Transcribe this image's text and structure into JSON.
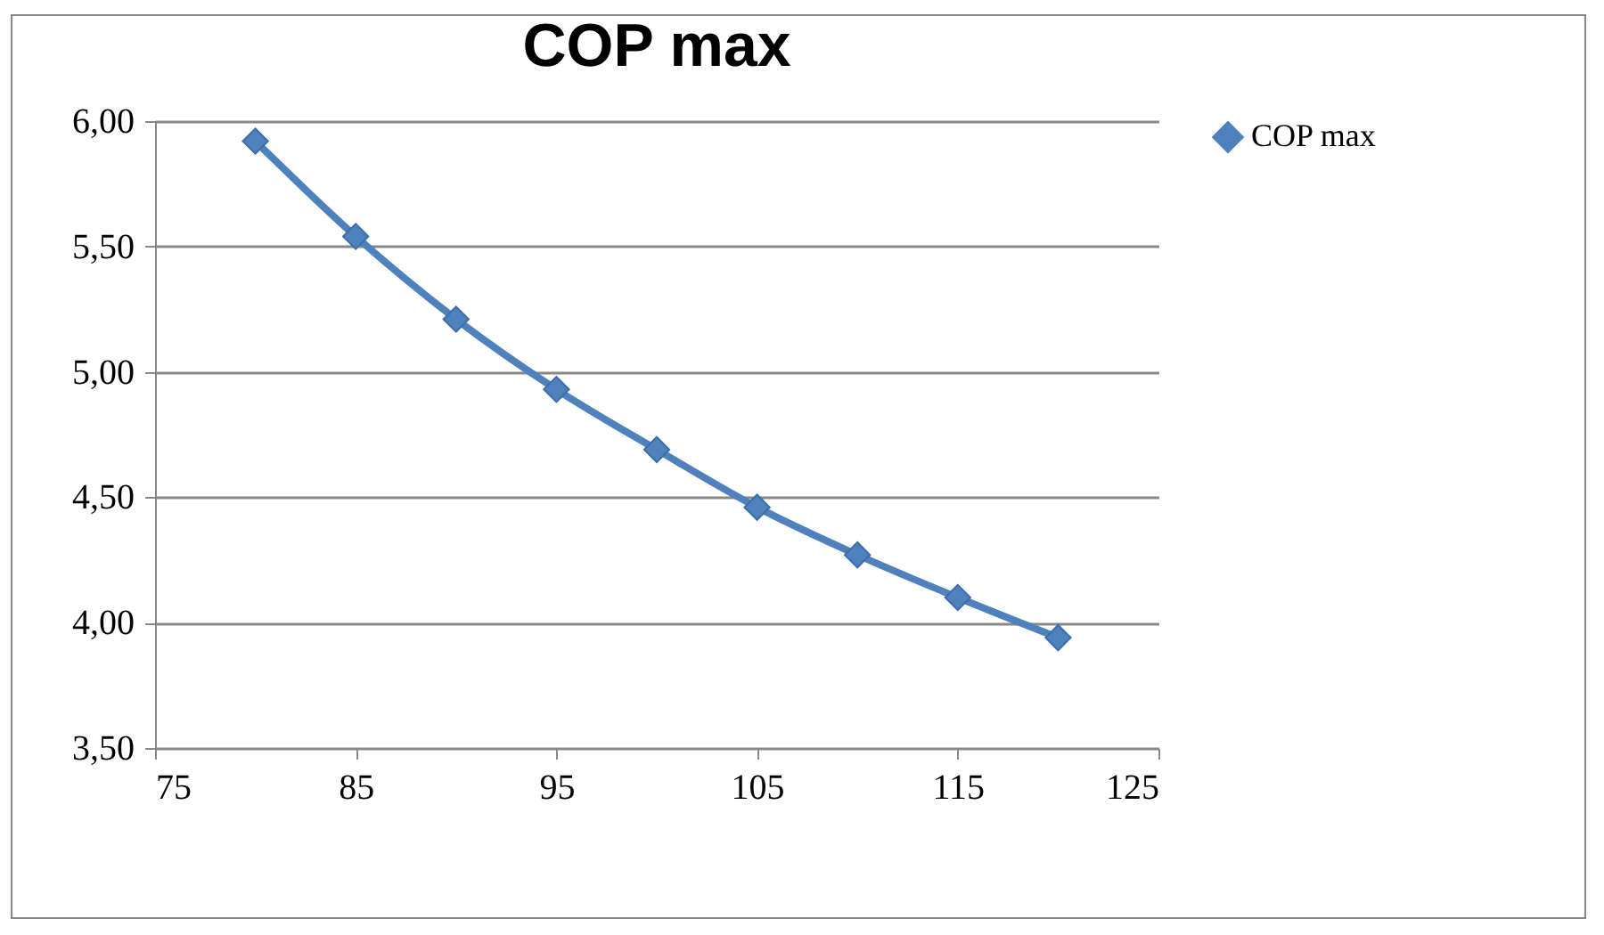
{
  "chart_data": {
    "type": "line",
    "title": "COP max",
    "x": [
      80,
      85,
      90,
      95,
      100,
      105,
      110,
      115,
      120
    ],
    "series": [
      {
        "name": "COP max",
        "color": "#4f81bd",
        "values": [
          5.92,
          5.54,
          5.21,
          4.93,
          4.69,
          4.46,
          4.27,
          4.1,
          3.94
        ]
      }
    ],
    "xlim": [
      75,
      125
    ],
    "xticks": [
      75,
      85,
      95,
      105,
      115,
      125
    ],
    "ylim": [
      3.5,
      6
    ],
    "yticks": [
      {
        "value": 3.5,
        "label": "3,50"
      },
      {
        "value": 4,
        "label": "4,00"
      },
      {
        "value": 4.5,
        "label": "4,50"
      },
      {
        "value": 5,
        "label": "5,00"
      },
      {
        "value": 5.5,
        "label": "5,50"
      },
      {
        "value": 6,
        "label": "6,00"
      }
    ],
    "grid": "y",
    "legend": "right",
    "marker": "diamond",
    "line_style": "solid"
  }
}
